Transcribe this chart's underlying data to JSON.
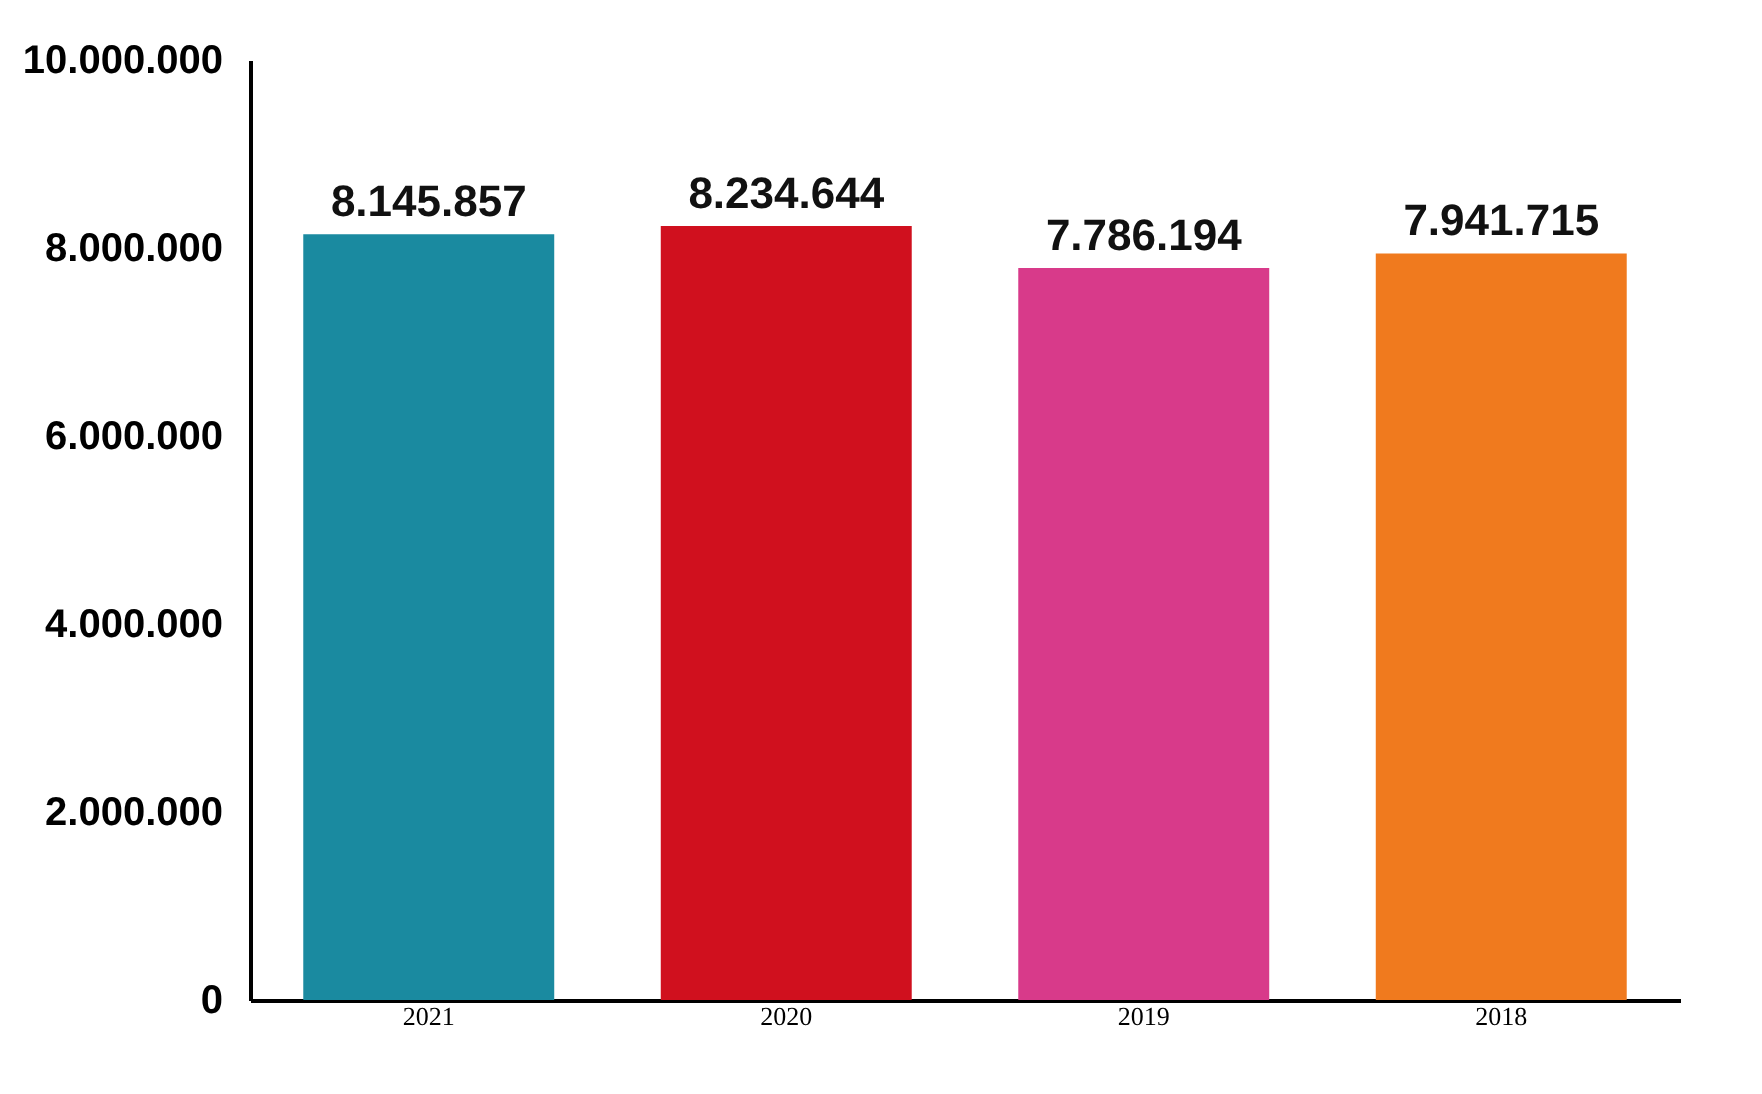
{
  "chart_data": {
    "type": "bar",
    "categories": [
      "2021",
      "2020",
      "2019",
      "2018"
    ],
    "values": [
      8145857,
      8234644,
      7786194,
      7941715
    ],
    "colors": [
      "#1a8aa0",
      "#d0101e",
      "#d83a8a",
      "#f07a1e"
    ],
    "value_labels": [
      "8.145.857",
      "8.234.644",
      "7.786.194",
      "7.941.715"
    ],
    "ylim": [
      0,
      10000000
    ],
    "yticks": [
      {
        "value": 0,
        "label": "0"
      },
      {
        "value": 2000000,
        "label": "2.000.000"
      },
      {
        "value": 4000000,
        "label": "4.000.000"
      },
      {
        "value": 6000000,
        "label": "6.000.000"
      },
      {
        "value": 8000000,
        "label": "8.000.000"
      },
      {
        "value": 10000000,
        "label": "10.000.000"
      }
    ],
    "grid": false
  }
}
